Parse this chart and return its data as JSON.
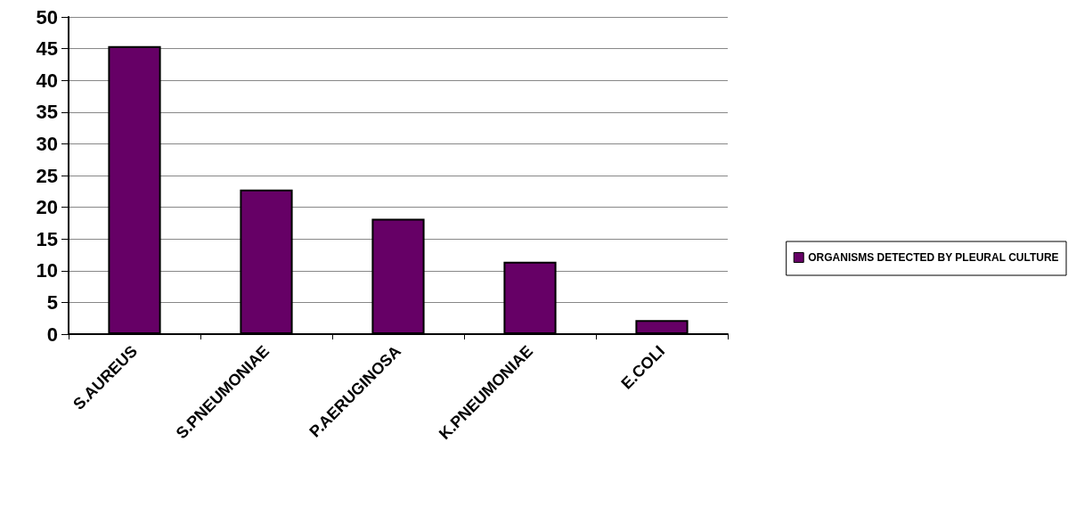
{
  "chart_data": {
    "type": "bar",
    "categories": [
      "S.AUREUS",
      "S.PNEUMONIAE",
      "P.AERUGINOSA",
      "K.PNEUMONIAE",
      "E.COLI"
    ],
    "series": [
      {
        "name": "ORGANISMS DETECTED BY PLEURAL CULTURE",
        "color": "#660066",
        "values": [
          45.4,
          22.8,
          18.2,
          11.4,
          2.2
        ]
      }
    ],
    "ylim": [
      0,
      50
    ],
    "yticks": [
      0,
      5,
      10,
      15,
      20,
      25,
      30,
      35,
      40,
      45,
      50
    ],
    "grid": "y",
    "legend": "right"
  }
}
